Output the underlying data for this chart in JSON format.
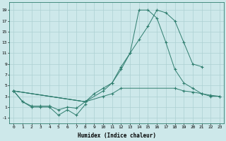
{
  "xlabel": "Humidex (Indice chaleur)",
  "line_color": "#2e7d6e",
  "bg_color": "#cde8ea",
  "grid_color": "#add0d2",
  "ylim": [
    -2.0,
    20.5
  ],
  "xlim": [
    -0.5,
    23.5
  ],
  "yticks": [
    -1,
    1,
    3,
    5,
    7,
    9,
    11,
    13,
    15,
    17,
    19
  ],
  "xticks": [
    0,
    1,
    2,
    3,
    4,
    5,
    6,
    7,
    8,
    9,
    10,
    11,
    12,
    13,
    14,
    15,
    16,
    17,
    18,
    19,
    20,
    21,
    22,
    23
  ],
  "series": [
    {
      "x": [
        0,
        1,
        2,
        3,
        4,
        5,
        6,
        7,
        8
      ],
      "y": [
        4.0,
        2.0,
        1.0,
        1.0,
        1.0,
        -0.5,
        0.5,
        -0.5,
        1.5
      ]
    },
    {
      "x": [
        0,
        1,
        2,
        3,
        4,
        5,
        6,
        7,
        8
      ],
      "y": [
        4.0,
        2.0,
        1.2,
        1.2,
        1.2,
        0.5,
        1.0,
        0.8,
        2.0
      ]
    },
    {
      "x": [
        0,
        8,
        10,
        11,
        12,
        13,
        14,
        15,
        16,
        17,
        18,
        19,
        20,
        21
      ],
      "y": [
        4.0,
        2.0,
        4.0,
        5.5,
        8.5,
        11.0,
        13.5,
        16.0,
        19.0,
        18.5,
        17.0,
        13.0,
        9.0,
        8.5
      ]
    },
    {
      "x": [
        0,
        8,
        9,
        10,
        11,
        12,
        13,
        14,
        15,
        16,
        17,
        18,
        19,
        20,
        21,
        22,
        23
      ],
      "y": [
        4.0,
        2.0,
        3.5,
        4.5,
        5.5,
        8.0,
        11.0,
        19.0,
        19.0,
        17.5,
        13.0,
        8.0,
        5.5,
        4.5,
        3.5,
        3.0,
        3.0
      ]
    },
    {
      "x": [
        0,
        8,
        10,
        11,
        12,
        18,
        19,
        20,
        21,
        22,
        23
      ],
      "y": [
        4.0,
        2.0,
        3.0,
        3.5,
        4.5,
        4.5,
        4.0,
        3.8,
        3.5,
        3.2,
        3.0
      ]
    }
  ]
}
